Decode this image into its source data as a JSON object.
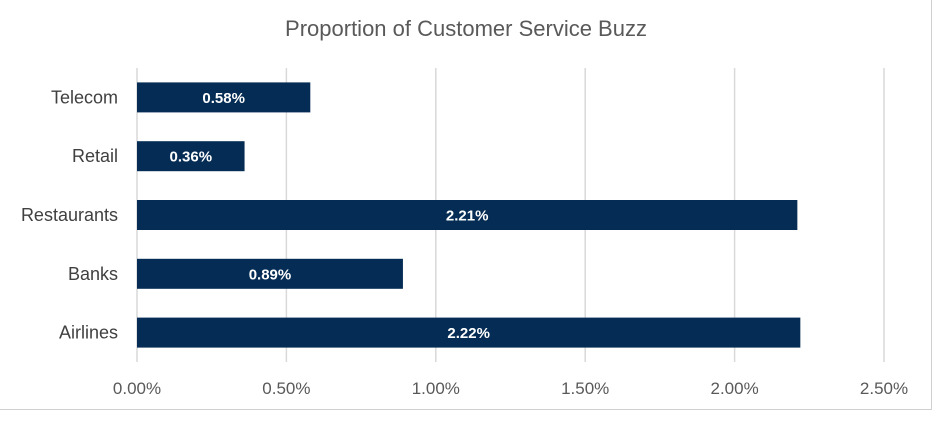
{
  "chart_data": {
    "type": "bar",
    "orientation": "horizontal",
    "title": "Proportion of Customer Service Buzz",
    "categories": [
      "Telecom",
      "Retail",
      "Restaurants",
      "Banks",
      "Airlines"
    ],
    "values": [
      0.58,
      0.36,
      2.21,
      0.89,
      2.22
    ],
    "data_labels": [
      "0.58%",
      "0.36%",
      "2.21%",
      "0.89%",
      "2.22%"
    ],
    "xlim": [
      0,
      2.5
    ],
    "x_ticks": [
      0,
      0.5,
      1.0,
      1.5,
      2.0,
      2.5
    ],
    "x_tick_labels": [
      "0.00%",
      "0.50%",
      "1.00%",
      "1.50%",
      "2.00%",
      "2.50%"
    ],
    "xlabel": "",
    "ylabel": "",
    "grid": "vertical",
    "legend": "none",
    "colors": {
      "bar": "#042c54",
      "grid": "#d9d9d9",
      "title": "#595959"
    }
  }
}
